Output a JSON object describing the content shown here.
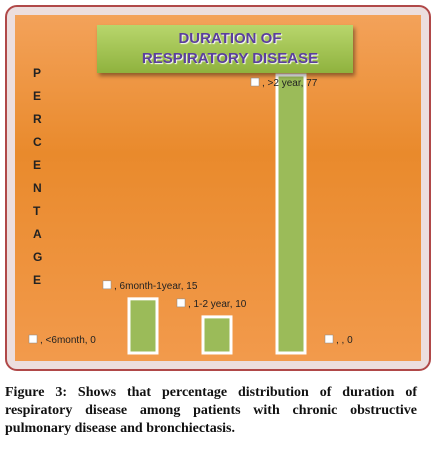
{
  "chart_data": {
    "type": "bar",
    "title": "DURATION OF RESPIRATORY DISEASE",
    "y_label": "PERCENTAGE",
    "values": [
      0,
      15,
      10,
      77,
      0
    ],
    "value_labels": [
      ", <6month, 0",
      ", 6month-1year, 15",
      ", 1-2 year, 10",
      ", >2 year, 77",
      ", , 0"
    ],
    "color": "#9bbb59"
  },
  "caption": "Figure 3: Shows that percentage distribution of duration of respiratory disease among patients with chronic obstructive pulmonary disease and bronchiectasis."
}
